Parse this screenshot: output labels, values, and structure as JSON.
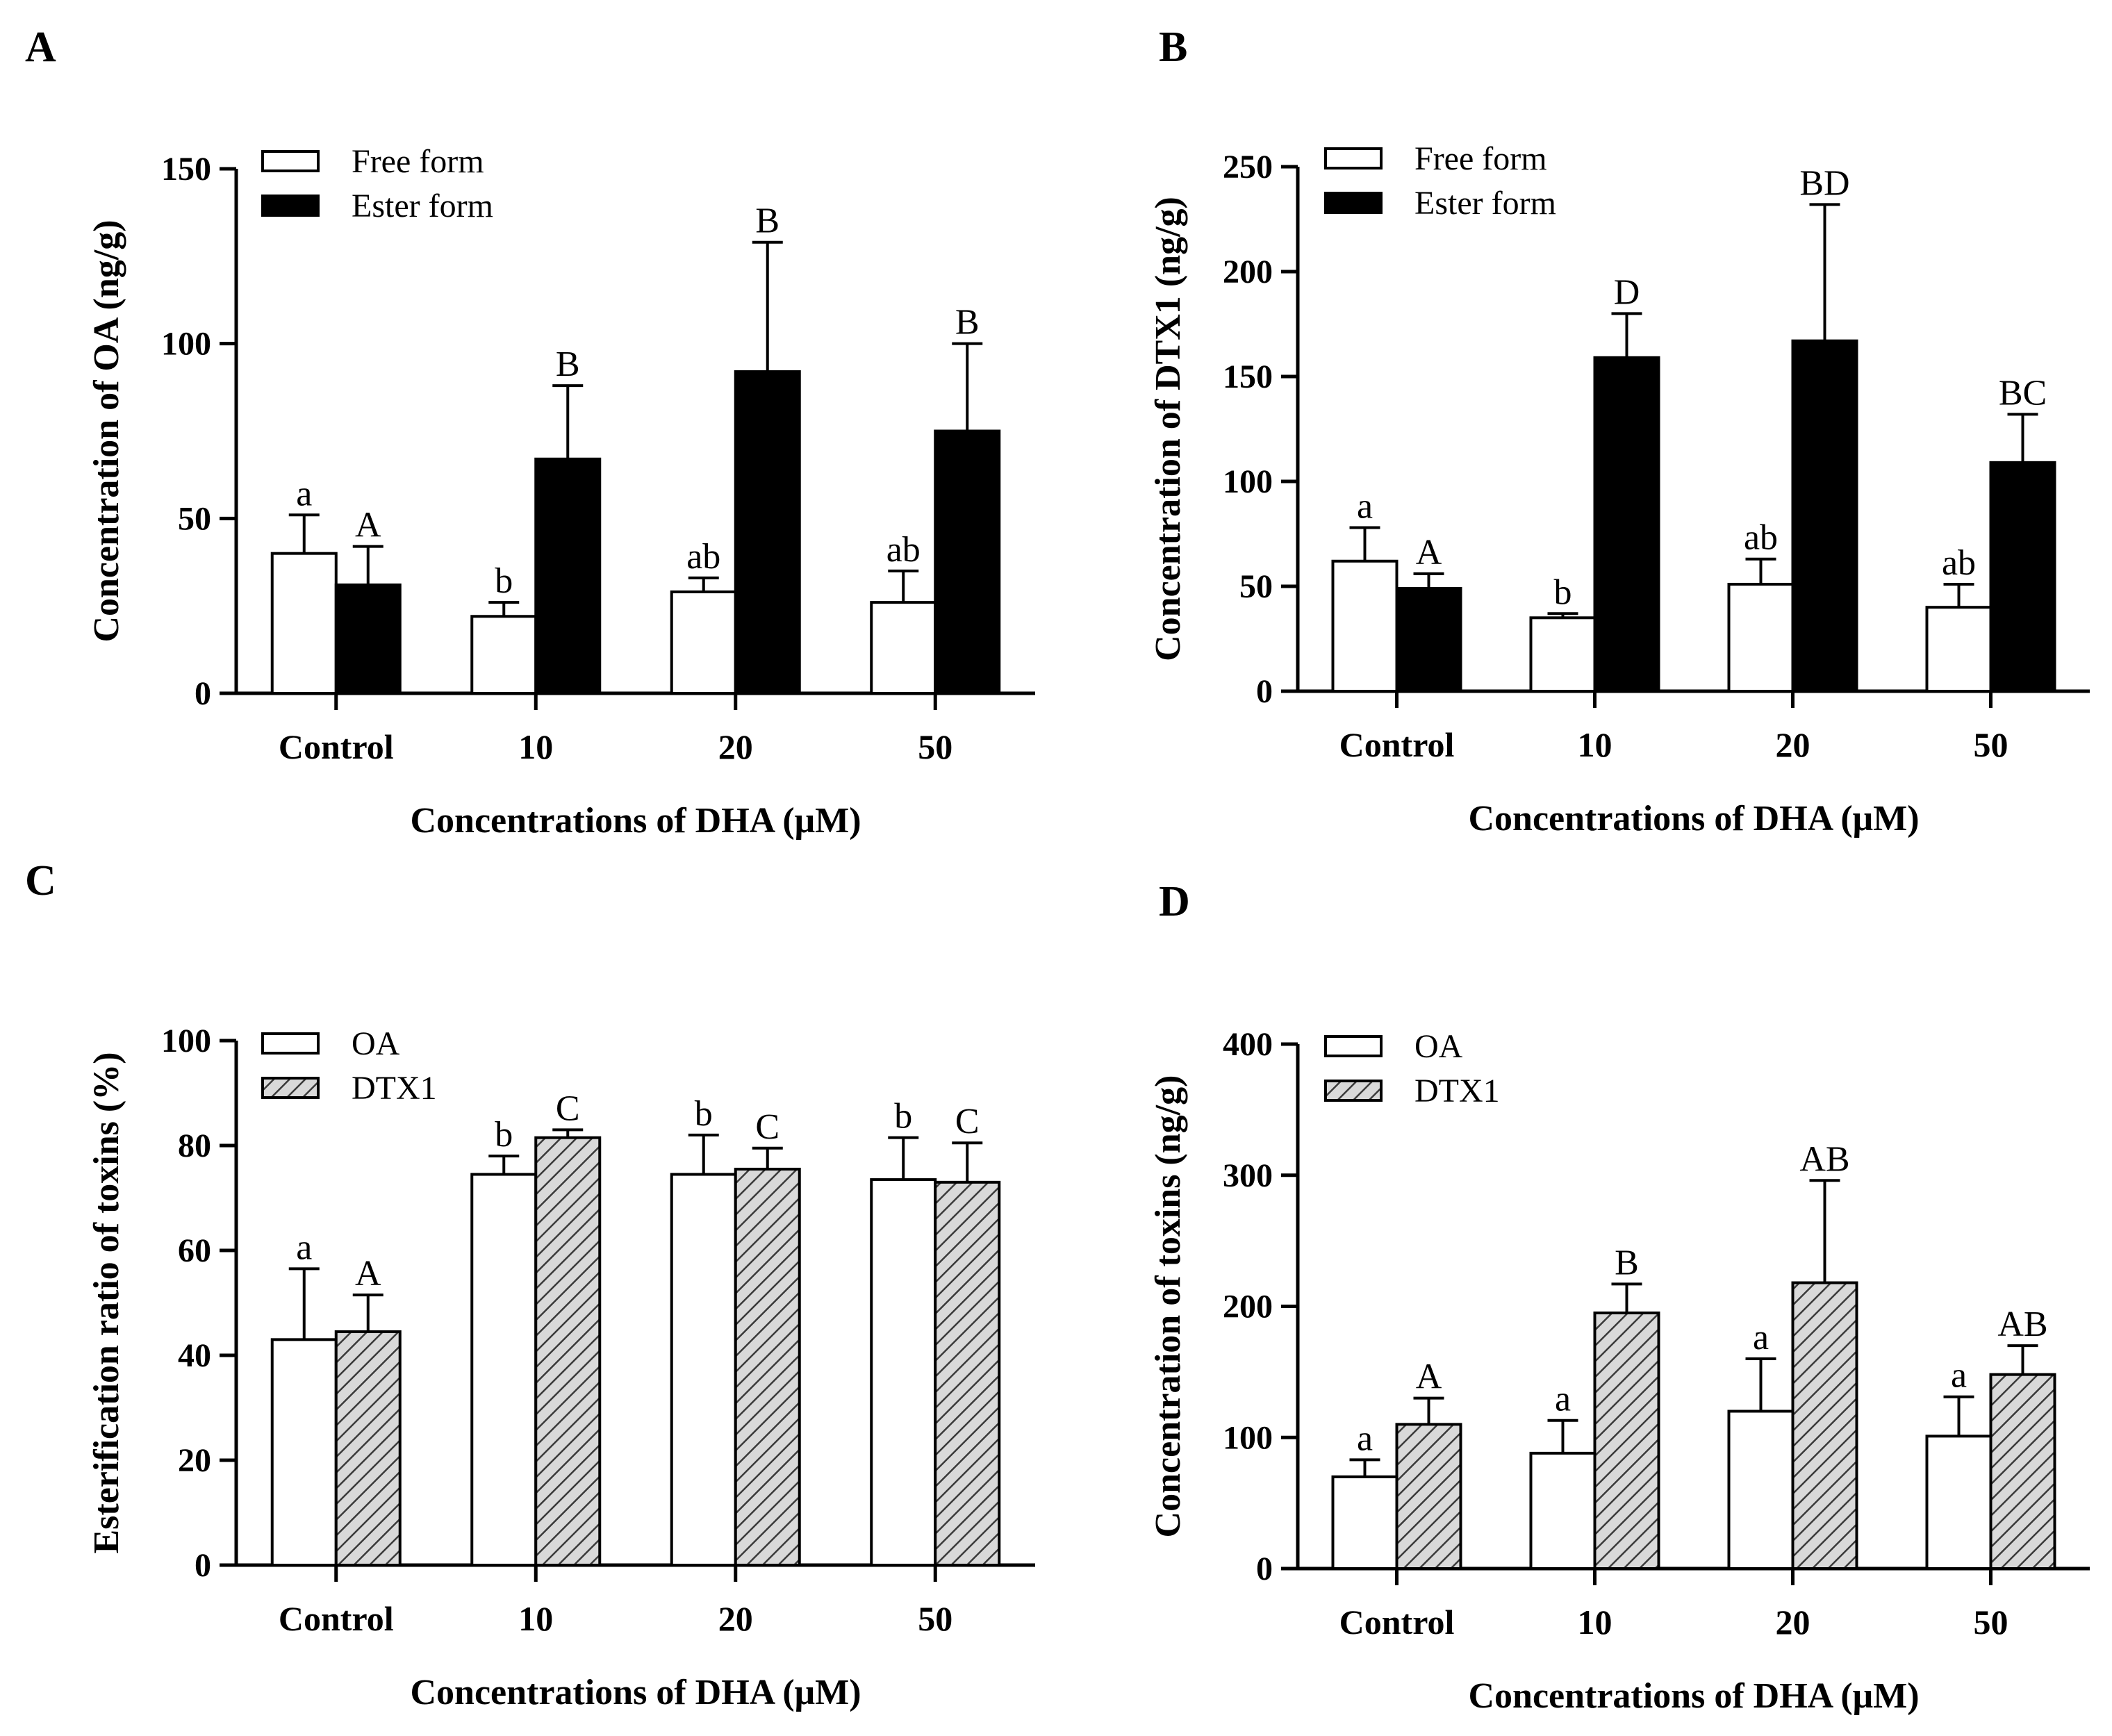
{
  "chart_data": [
    {
      "panel": "A",
      "type": "bar",
      "categories": [
        "Control",
        "10",
        "20",
        "50"
      ],
      "xlabel": "Concentrations of DHA (μM)",
      "ylabel": "Concentration of OA (ng/g)",
      "ylim": [
        0,
        150
      ],
      "yticks": [
        "0",
        "50",
        "100",
        "150"
      ],
      "legend_position": "top-left",
      "series": [
        {
          "name": "Free form",
          "fill": "white",
          "values": [
            40,
            22,
            29,
            26
          ],
          "errors": [
            11,
            4,
            4,
            9
          ],
          "letters": [
            "a",
            "b",
            "ab",
            "ab"
          ]
        },
        {
          "name": "Ester form",
          "fill": "black",
          "values": [
            31,
            67,
            92,
            75
          ],
          "errors": [
            11,
            21,
            37,
            25
          ],
          "letters": [
            "A",
            "B",
            "B",
            "B"
          ]
        }
      ]
    },
    {
      "panel": "B",
      "type": "bar",
      "categories": [
        "Control",
        "10",
        "20",
        "50"
      ],
      "xlabel": "Concentrations of DHA (μM)",
      "ylabel": "Concentration of DTX1 (ng/g)",
      "ylim": [
        0,
        250
      ],
      "yticks": [
        "0",
        "50",
        "100",
        "150",
        "200",
        "250"
      ],
      "legend_position": "top-left",
      "series": [
        {
          "name": "Free form",
          "fill": "white",
          "values": [
            62,
            35,
            51,
            40
          ],
          "errors": [
            16,
            2,
            12,
            11
          ],
          "letters": [
            "a",
            "b",
            "ab",
            "ab"
          ]
        },
        {
          "name": "Ester form",
          "fill": "black",
          "values": [
            49,
            159,
            167,
            109
          ],
          "errors": [
            7,
            21,
            65,
            23
          ],
          "letters": [
            "A",
            "D",
            "BD",
            "BC"
          ]
        }
      ]
    },
    {
      "panel": "C",
      "type": "bar",
      "categories": [
        "Control",
        "10",
        "20",
        "50"
      ],
      "xlabel": "Concentrations of DHA (μM)",
      "ylabel": "Esterification ratio of toxins (%)",
      "ylim": [
        0,
        100
      ],
      "yticks": [
        "0",
        "20",
        "40",
        "60",
        "80",
        "100"
      ],
      "legend_position": "top-left",
      "series": [
        {
          "name": "OA",
          "fill": "white",
          "values": [
            43,
            74.5,
            74.5,
            73.5
          ],
          "errors": [
            13.5,
            3.5,
            7.5,
            8
          ],
          "letters": [
            "a",
            "b",
            "b",
            "b"
          ]
        },
        {
          "name": "DTX1",
          "fill": "hatch",
          "values": [
            44.5,
            81.5,
            75.5,
            73
          ],
          "errors": [
            7,
            1.5,
            4,
            7.5
          ],
          "letters": [
            "A",
            "C",
            "C",
            "C"
          ]
        }
      ]
    },
    {
      "panel": "D",
      "type": "bar",
      "categories": [
        "Control",
        "10",
        "20",
        "50"
      ],
      "xlabel": "Concentrations of DHA (μM)",
      "ylabel": "Concentration of toxins (ng/g)",
      "ylim": [
        0,
        400
      ],
      "yticks": [
        "0",
        "100",
        "200",
        "300",
        "400"
      ],
      "legend_position": "top-left",
      "series": [
        {
          "name": "OA",
          "fill": "white",
          "values": [
            70,
            88,
            120,
            101
          ],
          "errors": [
            13,
            25,
            40,
            30
          ],
          "letters": [
            "a",
            "a",
            "a",
            "a"
          ]
        },
        {
          "name": "DTX1",
          "fill": "hatch",
          "values": [
            110,
            195,
            218,
            148
          ],
          "errors": [
            20,
            22,
            78,
            22
          ],
          "letters": [
            "A",
            "B",
            "AB",
            "AB"
          ]
        }
      ]
    }
  ]
}
